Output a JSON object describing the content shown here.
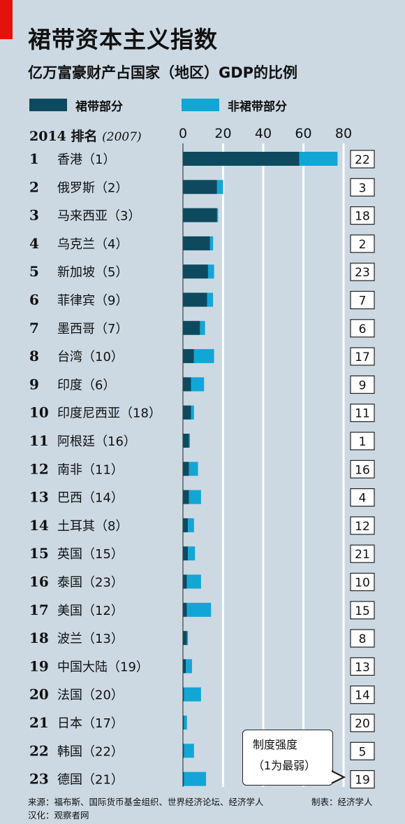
{
  "title": "裙带资本主义指数",
  "subtitle": "亿万富豪财产占国家（地区）GDP的比例",
  "legend": [
    {
      "label": "裙带部分",
      "color": "#0d4a5e"
    },
    {
      "label": "非裙带部分",
      "color": "#12a6d6"
    }
  ],
  "rank_header": {
    "label": "2014 排名",
    "prev": "(2007)"
  },
  "callout": {
    "line1": "制度强度",
    "line2": "（1为最弱）"
  },
  "footer": {
    "source": "来源：福布斯、国际货币基金组织、世界经济论坛、经济学人",
    "maker": "制表：经济学人",
    "translation": "汉化：观察者网"
  },
  "chart_data": {
    "type": "bar",
    "stacked": true,
    "orientation": "horizontal",
    "xlim": [
      0,
      80
    ],
    "ticks": [
      "0",
      "20",
      "40",
      "60",
      "80"
    ],
    "grid": true,
    "legend_position": "top",
    "rows": [
      {
        "rank": "1",
        "country": "香港（1）",
        "crony": 58,
        "noncrony": 19,
        "strength": "22"
      },
      {
        "rank": "2",
        "country": "俄罗斯（2）",
        "crony": 17,
        "noncrony": 3,
        "strength": "3"
      },
      {
        "rank": "3",
        "country": "马来西亚（3）",
        "crony": 17,
        "noncrony": 0.5,
        "strength": "18"
      },
      {
        "rank": "4",
        "country": "乌克兰（4）",
        "crony": 13.5,
        "noncrony": 1.5,
        "strength": "2"
      },
      {
        "rank": "5",
        "country": "新加坡（5）",
        "crony": 12.5,
        "noncrony": 3,
        "strength": "23"
      },
      {
        "rank": "6",
        "country": "菲律宾（9）",
        "crony": 12,
        "noncrony": 3,
        "strength": "7"
      },
      {
        "rank": "7",
        "country": "墨西哥（7）",
        "crony": 8.5,
        "noncrony": 2.5,
        "strength": "6"
      },
      {
        "rank": "8",
        "country": "台湾（10）",
        "crony": 5.5,
        "noncrony": 10,
        "strength": "17"
      },
      {
        "rank": "9",
        "country": "印度（6）",
        "crony": 4,
        "noncrony": 6.5,
        "strength": "9"
      },
      {
        "rank": "10",
        "country": "印度尼西亚（18）",
        "crony": 4,
        "noncrony": 1.5,
        "strength": "11"
      },
      {
        "rank": "11",
        "country": "阿根廷（16）",
        "crony": 3,
        "noncrony": 0.5,
        "strength": "1"
      },
      {
        "rank": "12",
        "country": "南非（11）",
        "crony": 3,
        "noncrony": 4.5,
        "strength": "16"
      },
      {
        "rank": "13",
        "country": "巴西（14）",
        "crony": 3,
        "noncrony": 6,
        "strength": "4"
      },
      {
        "rank": "14",
        "country": "土耳其（8）",
        "crony": 2.5,
        "noncrony": 3,
        "strength": "12"
      },
      {
        "rank": "15",
        "country": "英国（15）",
        "crony": 2.5,
        "noncrony": 3.5,
        "strength": "21"
      },
      {
        "rank": "16",
        "country": "泰国（23）",
        "crony": 2,
        "noncrony": 7,
        "strength": "10"
      },
      {
        "rank": "17",
        "country": "美国（12）",
        "crony": 2,
        "noncrony": 12,
        "strength": "15"
      },
      {
        "rank": "18",
        "country": "波兰（13）",
        "crony": 2,
        "noncrony": 0.5,
        "strength": "8"
      },
      {
        "rank": "19",
        "country": "中国大陆（19）",
        "crony": 1.5,
        "noncrony": 3,
        "strength": "13"
      },
      {
        "rank": "20",
        "country": "法国（20）",
        "crony": 0.5,
        "noncrony": 8.5,
        "strength": "14"
      },
      {
        "rank": "21",
        "country": "日本（17）",
        "crony": 0.5,
        "noncrony": 1.5,
        "strength": "20"
      },
      {
        "rank": "22",
        "country": "韩国（22）",
        "crony": 0.5,
        "noncrony": 5,
        "strength": "5"
      },
      {
        "rank": "23",
        "country": "德国（21）",
        "crony": 0.5,
        "noncrony": 11,
        "strength": "19"
      }
    ]
  }
}
